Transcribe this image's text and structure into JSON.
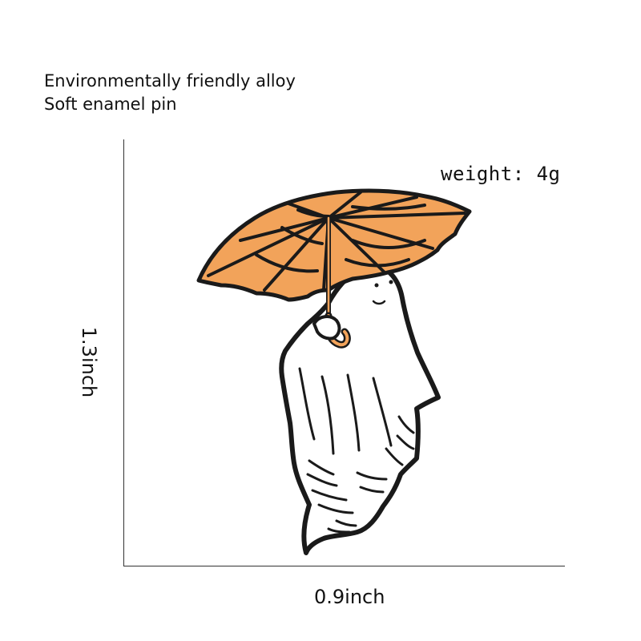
{
  "description": {
    "line1": "Environmentally friendly alloy",
    "line2": "Soft enamel pin"
  },
  "dimensions": {
    "width_label": "0.9inch",
    "height_label": "1.3inch"
  },
  "weight_label": "weight: 4g",
  "product": {
    "image_icon": "ghost-with-umbrella-icon",
    "colors": {
      "umbrella": "#f2a35a",
      "outline": "#1a1a1a",
      "ghost": "#ffffff"
    }
  }
}
